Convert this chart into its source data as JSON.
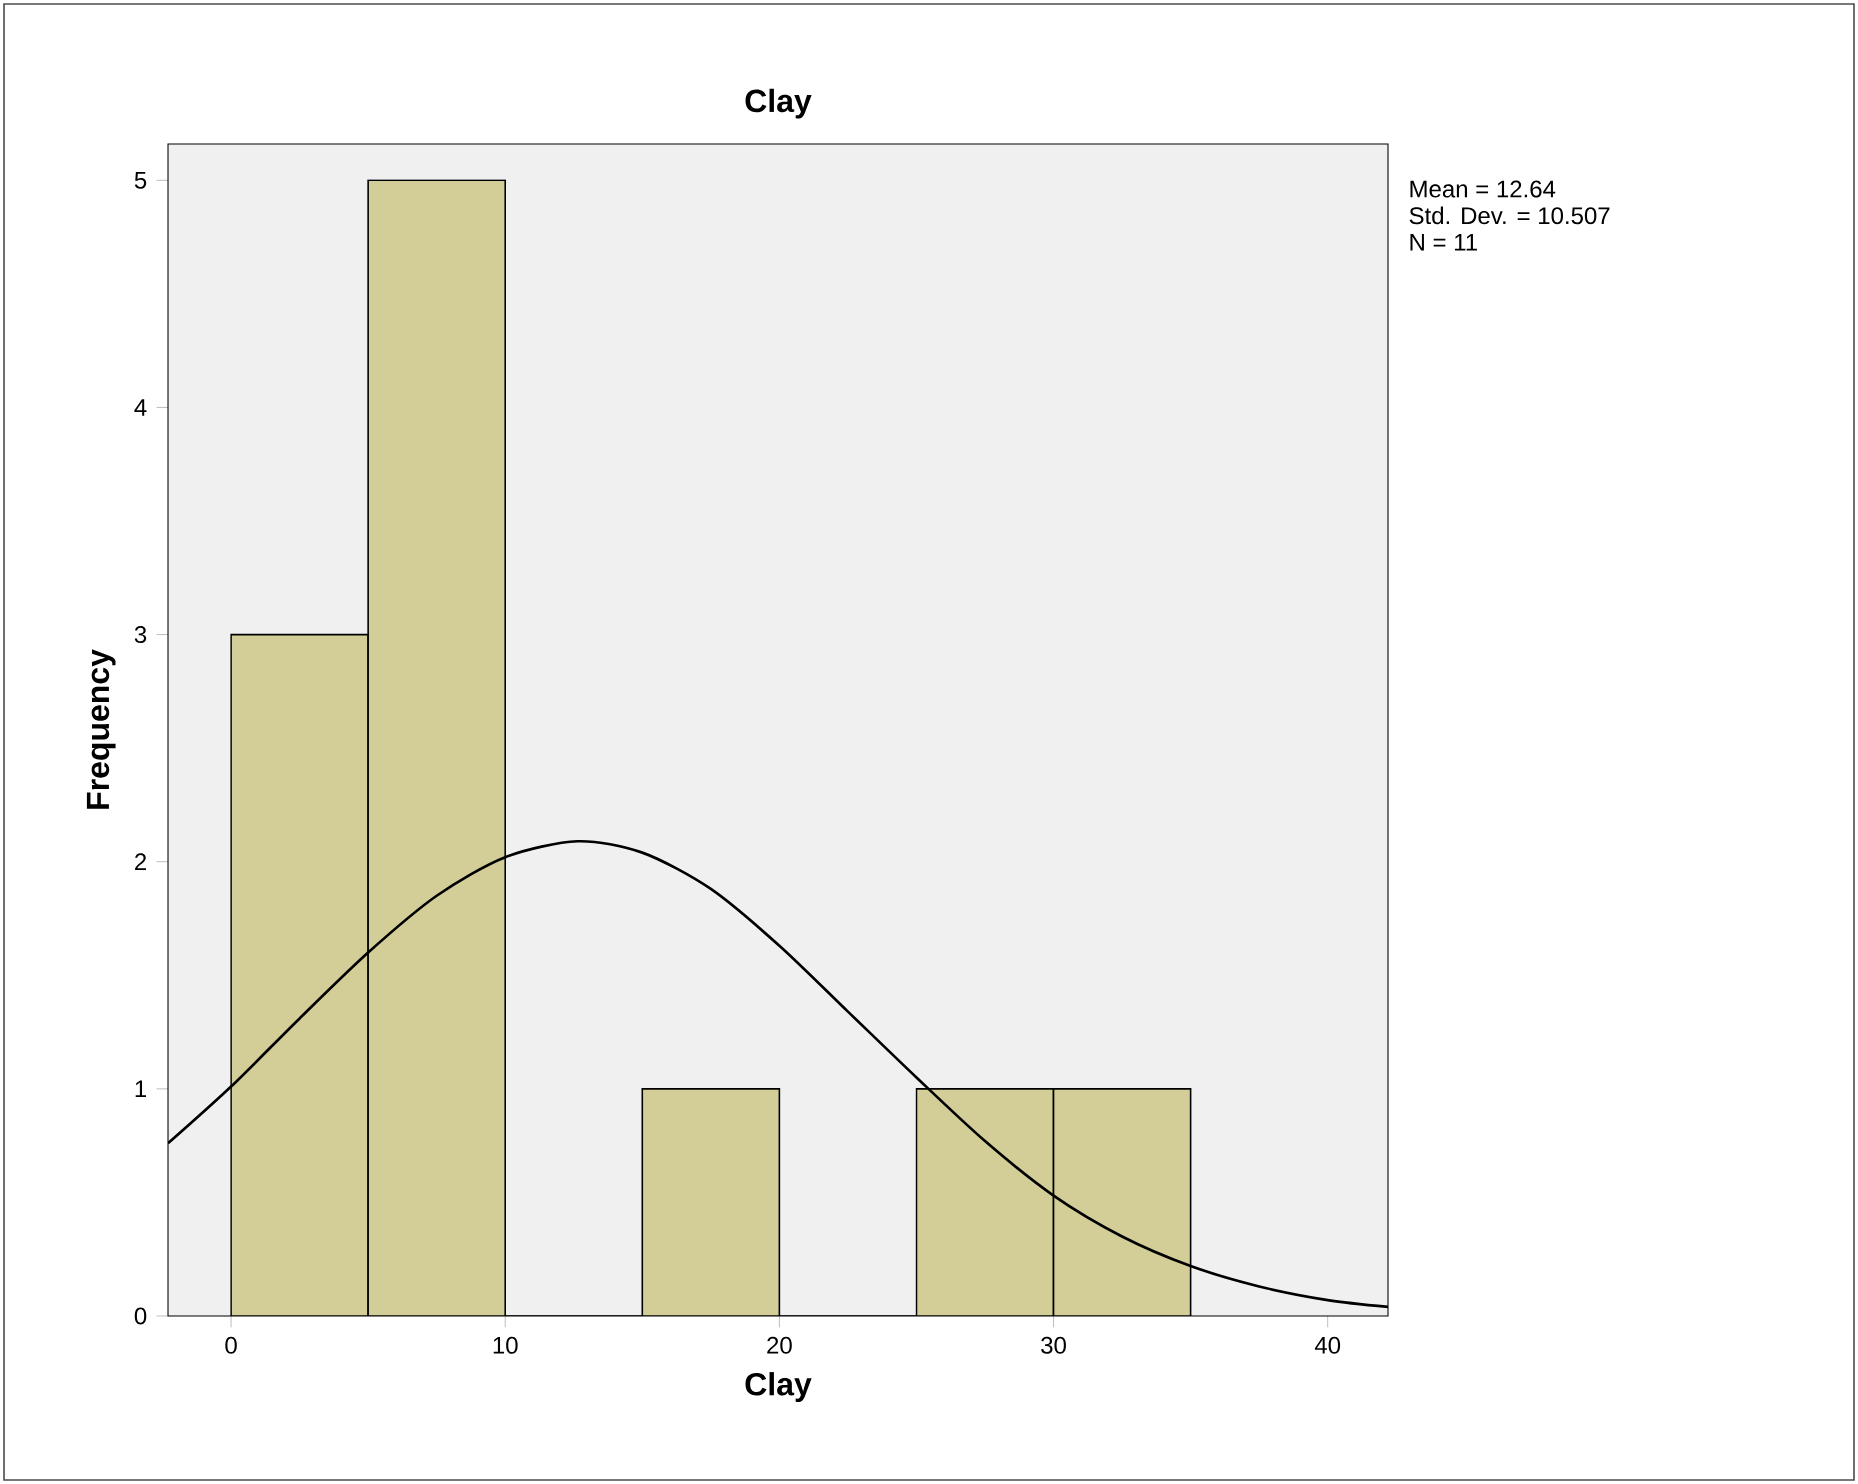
{
  "chart_data": {
    "type": "histogram",
    "title": "Clay",
    "xlabel": "Clay",
    "ylabel": "Frequency",
    "bins": [
      0,
      5,
      10,
      15,
      20,
      25,
      30,
      35
    ],
    "values": [
      3,
      5,
      0,
      1,
      0,
      1,
      1
    ],
    "color": "#d3ce97",
    "series": [
      {
        "type": "line",
        "color": "#000000",
        "x": [
          -2.3,
          0,
          2.5,
          5,
          7.5,
          10,
          12.64,
          15,
          17.5,
          20,
          22.5,
          25,
          27.5,
          30,
          32.5,
          35,
          37.5,
          40,
          42.2
        ],
        "values": [
          0.76,
          1.01,
          1.31,
          1.6,
          1.85,
          2.02,
          2.09,
          2.04,
          1.88,
          1.63,
          1.34,
          1.05,
          0.77,
          0.53,
          0.35,
          0.22,
          0.13,
          0.07,
          0.04
        ]
      }
    ],
    "xlim": [
      -2.3,
      42.2
    ],
    "ylim": [
      0,
      5.16
    ],
    "xticks": [
      0,
      10,
      20,
      30,
      40
    ],
    "yticks": [
      0,
      1,
      2,
      3,
      4,
      5
    ],
    "grid": false,
    "annotations": [
      "Mean = 12.64",
      "Std. Dev. = 10.507",
      "N = 11"
    ]
  }
}
